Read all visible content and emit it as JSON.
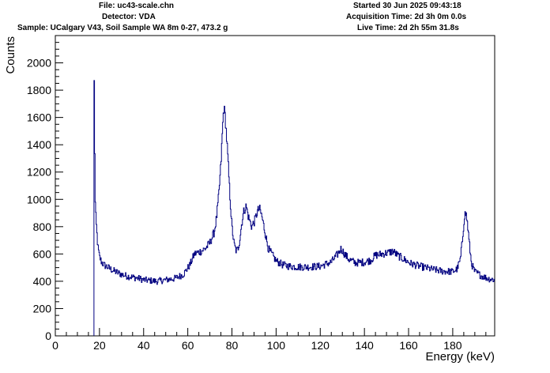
{
  "header": {
    "file": "File: uc43-scale.chn",
    "detector": "Detector: VDA",
    "sample": "Sample: UCalgary V43, Soil Sample WA 8m 0-27, 473.2 g",
    "started": "Started 30 Jun 2025 09:43:18",
    "acquisition": "Acquisition Time: 2d 3h 0m 0.0s",
    "live": "Live Time: 2d 2h 55m 31.8s"
  },
  "chart_data": {
    "type": "line",
    "xlabel": "Energy (keV)",
    "ylabel": "Counts",
    "xlim": [
      0,
      199
    ],
    "ylim": [
      0,
      2200
    ],
    "x_ticks": [
      0,
      20,
      40,
      60,
      80,
      100,
      120,
      140,
      160,
      180
    ],
    "y_ticks": [
      0,
      200,
      400,
      600,
      800,
      1000,
      1200,
      1400,
      1600,
      1800,
      2000
    ],
    "grid": false,
    "line_color": "#000080",
    "series": [
      {
        "values_x": [
          17.5,
          17.7,
          17.9,
          18.1,
          18.4,
          18.8,
          19.3,
          20,
          21,
          22,
          24,
          26,
          28,
          30,
          32,
          35,
          38,
          40,
          43,
          46,
          50,
          54,
          58,
          61,
          63,
          66,
          68,
          70,
          72,
          73,
          74,
          75,
          75.7,
          76.3,
          77,
          78,
          79,
          80,
          81,
          82,
          82.8,
          83.5,
          84.5,
          85.5,
          86.5,
          87.5,
          89,
          90.5,
          91.5,
          92.5,
          93.5,
          94.5,
          95.5,
          96.5,
          98,
          100,
          103,
          106,
          110,
          115,
          120,
          125,
          128,
          129.5,
          131,
          133,
          136,
          140,
          143,
          145,
          148,
          151,
          153,
          155,
          158,
          161,
          165,
          170,
          175,
          180,
          182,
          183.5,
          184.5,
          185.3,
          186,
          186.7,
          187.5,
          188.5,
          190,
          193,
          196,
          199
        ],
        "values_y": [
          2080,
          1720,
          1300,
          980,
          860,
          760,
          650,
          580,
          540,
          520,
          500,
          480,
          465,
          450,
          440,
          430,
          420,
          410,
          405,
          400,
          410,
          420,
          450,
          520,
          600,
          620,
          640,
          680,
          760,
          860,
          1020,
          1250,
          1500,
          1680,
          1600,
          1350,
          1050,
          800,
          670,
          620,
          640,
          700,
          830,
          920,
          950,
          870,
          800,
          850,
          910,
          930,
          880,
          800,
          720,
          640,
          600,
          550,
          520,
          510,
          505,
          505,
          510,
          540,
          600,
          640,
          600,
          560,
          535,
          540,
          555,
          590,
          600,
          610,
          620,
          590,
          560,
          530,
          510,
          490,
          475,
          470,
          490,
          560,
          720,
          880,
          900,
          820,
          680,
          530,
          470,
          440,
          420,
          410
        ]
      }
    ]
  }
}
